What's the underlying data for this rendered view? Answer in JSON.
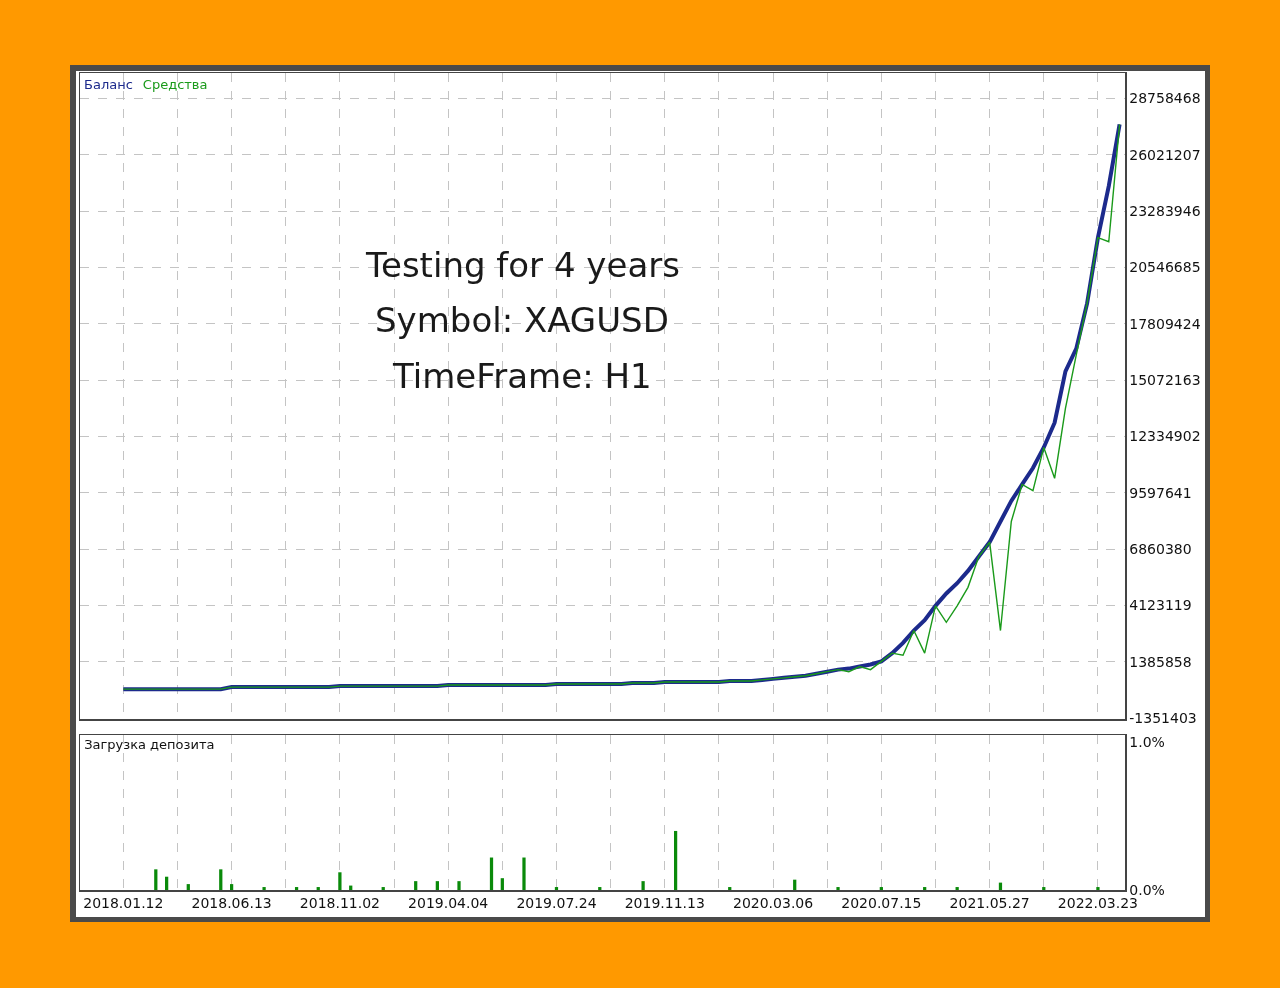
{
  "chart_data": [
    {
      "type": "line",
      "legend": "top left",
      "grid": true,
      "tick_labels": "y",
      "annotations": [
        "Testing for 4 years",
        "Symbol: XAGUSD",
        "TimeFrame: H1"
      ],
      "categories": [
        "2018.01.12",
        null,
        null,
        null,
        null,
        null,
        null,
        null,
        null,
        null,
        "2018.06.13",
        null,
        null,
        null,
        null,
        null,
        null,
        null,
        null,
        null,
        "2018.11.02",
        null,
        null,
        null,
        null,
        null,
        null,
        null,
        null,
        null,
        "2019.04.04",
        null,
        null,
        null,
        null,
        null,
        null,
        null,
        null,
        null,
        "2019.07.24",
        null,
        null,
        null,
        null,
        null,
        null,
        null,
        null,
        null,
        "2019.11.13",
        null,
        null,
        null,
        null,
        null,
        null,
        null,
        null,
        null,
        "2020.03.06",
        null,
        null,
        null,
        null,
        null,
        null,
        null,
        null,
        null,
        "2020.07.15",
        null,
        null,
        null,
        null,
        null,
        null,
        null,
        null,
        null,
        "2021.05.27",
        null,
        null,
        null,
        null,
        null,
        null,
        null,
        null,
        null,
        "2022.03.23",
        null,
        null
      ],
      "ylim": [
        -1400000,
        30000000
      ],
      "yticks": [
        -1351403,
        1385858,
        4123119,
        6860380,
        9597641,
        12334902,
        15072163,
        17809424,
        20546685,
        23283946,
        26021207,
        28758468
      ],
      "series": [
        {
          "name": "Баланс",
          "color": "#1c2a8c",
          "values": [
            50000,
            50000,
            50000,
            50000,
            50000,
            50000,
            50000,
            50000,
            50000,
            50000,
            150000,
            150000,
            150000,
            150000,
            150000,
            150000,
            150000,
            150000,
            150000,
            150000,
            200000,
            200000,
            200000,
            200000,
            200000,
            200000,
            200000,
            200000,
            200000,
            200000,
            250000,
            250000,
            250000,
            250000,
            250000,
            250000,
            250000,
            250000,
            250000,
            250000,
            300000,
            300000,
            300000,
            300000,
            300000,
            300000,
            300000,
            350000,
            350000,
            350000,
            400000,
            400000,
            400000,
            400000,
            400000,
            400000,
            450000,
            450000,
            450000,
            500000,
            550000,
            600000,
            650000,
            700000,
            800000,
            900000,
            1000000,
            1050000,
            1150000,
            1250000,
            1400000,
            1800000,
            2300000,
            2900000,
            3400000,
            4100000,
            4700000,
            5200000,
            5800000,
            6500000,
            7200000,
            8200000,
            9200000,
            10000000,
            10800000,
            11800000,
            13000000,
            15500000,
            16600000,
            18800000,
            22000000,
            24500000,
            27500000
          ]
        },
        {
          "name": "Средства",
          "color": "#1a9a1a",
          "values": [
            50000,
            50000,
            50000,
            50000,
            50000,
            50000,
            50000,
            50000,
            50000,
            50000,
            150000,
            150000,
            150000,
            150000,
            150000,
            150000,
            150000,
            150000,
            150000,
            150000,
            200000,
            200000,
            200000,
            200000,
            200000,
            200000,
            200000,
            200000,
            200000,
            200000,
            250000,
            250000,
            250000,
            250000,
            250000,
            250000,
            250000,
            250000,
            250000,
            250000,
            300000,
            300000,
            300000,
            300000,
            300000,
            300000,
            300000,
            350000,
            350000,
            350000,
            400000,
            400000,
            400000,
            400000,
            400000,
            400000,
            450000,
            450000,
            450000,
            500000,
            550000,
            600000,
            650000,
            700000,
            800000,
            900000,
            1000000,
            900000,
            1150000,
            1000000,
            1400000,
            1800000,
            1700000,
            2900000,
            1800000,
            4100000,
            3300000,
            4100000,
            5000000,
            6500000,
            7200000,
            2900000,
            8200000,
            10000000,
            9700000,
            11800000,
            10300000,
            13700000,
            16300000,
            18800000,
            22000000,
            21800000,
            27500000
          ]
        }
      ]
    },
    {
      "type": "bar",
      "title": "Загрузка депозита",
      "grid": "x",
      "color": "#0a8a0a",
      "categories": [
        "2018.01.12",
        null,
        null,
        null,
        null,
        null,
        null,
        null,
        null,
        null,
        "2018.06.13",
        null,
        null,
        null,
        null,
        null,
        null,
        null,
        null,
        null,
        "2018.11.02",
        null,
        null,
        null,
        null,
        null,
        null,
        null,
        null,
        null,
        "2019.04.04",
        null,
        null,
        null,
        null,
        null,
        null,
        null,
        null,
        null,
        "2019.07.24",
        null,
        null,
        null,
        null,
        null,
        null,
        null,
        null,
        null,
        "2019.11.13",
        null,
        null,
        null,
        null,
        null,
        null,
        null,
        null,
        null,
        "2020.03.06",
        null,
        null,
        null,
        null,
        null,
        null,
        null,
        null,
        null,
        "2020.07.15",
        null,
        null,
        null,
        null,
        null,
        null,
        null,
        null,
        null,
        "2021.05.27",
        null,
        null,
        null,
        null,
        null,
        null,
        null,
        null,
        null,
        "2022.03.23",
        null,
        null
      ],
      "ylim": [
        0,
        1.05
      ],
      "yticks": [
        {
          "value": 0,
          "label": "0.0%"
        },
        {
          "value": 1.0,
          "label": "1.0%"
        }
      ],
      "values": [
        0,
        0,
        0,
        0.14,
        0.09,
        0,
        0.04,
        0,
        0,
        0.14,
        0.04,
        0,
        0,
        0.02,
        0,
        0,
        0.02,
        0,
        0.02,
        0,
        0.12,
        0.03,
        0,
        0,
        0.02,
        0,
        0,
        0.06,
        0,
        0.06,
        0,
        0.06,
        0,
        0,
        0.22,
        0.08,
        0,
        0.22,
        0,
        0,
        0.02,
        0,
        0,
        0,
        0.02,
        0,
        0,
        0,
        0.06,
        0,
        0,
        0.4,
        0,
        0,
        0,
        0,
        0.02,
        0,
        0,
        0,
        0,
        0,
        0.07,
        0,
        0,
        0,
        0.02,
        0,
        0,
        0,
        0.02,
        0,
        0,
        0,
        0.02,
        0,
        0,
        0.02,
        0,
        0,
        0,
        0.05,
        0,
        0,
        0,
        0.02,
        0,
        0,
        0,
        0,
        0.02,
        0,
        0
      ]
    }
  ]
}
